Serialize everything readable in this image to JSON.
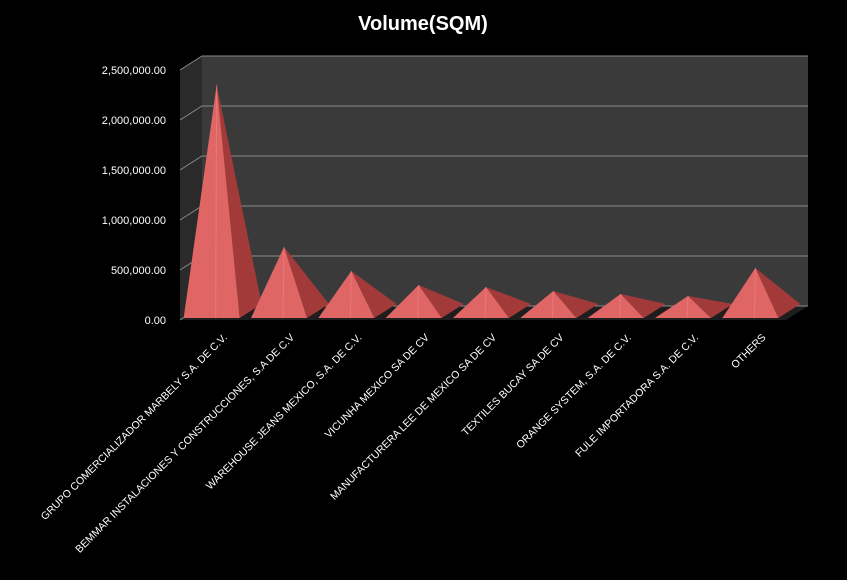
{
  "chart_data": {
    "type": "bar",
    "style": "3d-pyramid",
    "title": "Volume(SQM)",
    "xlabel": "",
    "ylabel": "",
    "ylim": [
      0,
      2500000
    ],
    "yticks": [
      0,
      500000,
      1000000,
      1500000,
      2000000,
      2500000
    ],
    "ytick_labels": [
      "0.00",
      "500,000.00",
      "1,000,000.00",
      "1,500,000.00",
      "2,000,000.00",
      "2,500,000.00"
    ],
    "categories": [
      "GRUPO COMERCIALIZADOR MARBELY S.A. DE C.V.",
      "BEMMAR INSTALACIONES Y CONSTRUCCIONES,  S.A DE C.V",
      "WAREHOUSE JEANS MEXICO, S.A. DE C.V.",
      "VICUNHA MEXICO SA DE CV",
      "MANUFACTURERA LEE DE MEXICO SA DE CV",
      "TEXTILES BUCAY SA DE CV",
      "ORANGE SYSTEM, S.A. DE C.V.",
      "FULE IMPORTADORA S.A. DE C.V.",
      "OTHERS"
    ],
    "values": [
      2280000,
      660000,
      420000,
      280000,
      260000,
      220000,
      190000,
      170000,
      450000
    ],
    "grid": true,
    "legend": "none",
    "colors": {
      "background": "#000000",
      "plot_wall": "#3a3a3a",
      "side_wall": "#2a2a2a",
      "floor": "#1e1e1e",
      "gridline": "#8a8a8a",
      "text": "#ffffff",
      "bar_front": "#e06666",
      "bar_side": "#a33a3a",
      "bar_top": "#ef8a8a"
    }
  }
}
